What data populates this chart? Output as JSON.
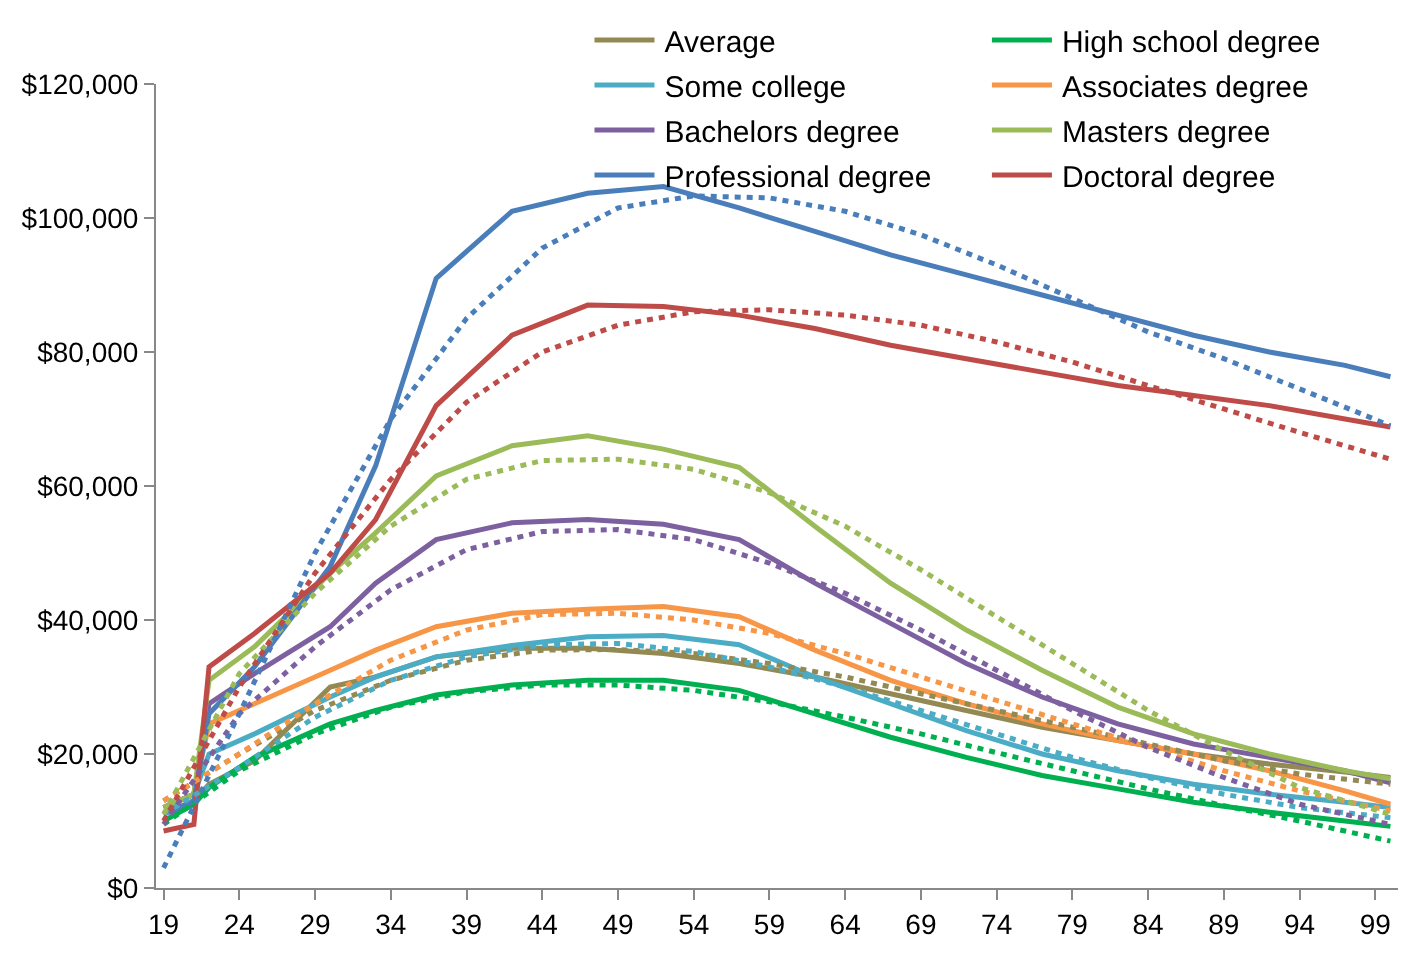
{
  "chart_data": {
    "type": "line",
    "line_style": "solid",
    "marker": "none",
    "legend": "top right",
    "x": [
      19,
      21,
      22,
      25,
      30,
      33,
      37,
      42,
      47,
      52,
      57,
      62,
      67,
      72,
      77,
      82,
      87,
      92,
      97,
      100
    ],
    "xlim": [
      18.5,
      100.5
    ],
    "xticks": [
      19,
      24,
      29,
      34,
      39,
      44,
      49,
      54,
      59,
      64,
      69,
      74,
      79,
      84,
      89,
      94,
      99
    ],
    "ylim": [
      0,
      120000
    ],
    "yticks": [
      {
        "value": 0,
        "label": "$0"
      },
      {
        "value": 20000,
        "label": "$20,000"
      },
      {
        "value": 40000,
        "label": "$40,000"
      },
      {
        "value": 60000,
        "label": "$60,000"
      },
      {
        "value": 80000,
        "label": "$80,000"
      },
      {
        "value": 100000,
        "label": "$100,000"
      },
      {
        "value": 120000,
        "label": "$120,000"
      }
    ],
    "series": [
      {
        "name": "Average",
        "color": "#938953",
        "values": [
          11000,
          13000,
          15500,
          19000,
          30000,
          31500,
          34500,
          35800,
          35800,
          35000,
          33500,
          31500,
          29000,
          26500,
          24000,
          22000,
          20000,
          18500,
          17300,
          16500
        ]
      },
      {
        "name": "High school degree",
        "color": "#00b050",
        "values": [
          10000,
          12500,
          15000,
          19500,
          24500,
          26500,
          28800,
          30300,
          31000,
          31000,
          29500,
          26000,
          22500,
          19500,
          16800,
          14800,
          12800,
          11300,
          10000,
          9200
        ]
      },
      {
        "name": "Some college",
        "color": "#4bacc6",
        "values": [
          12000,
          14000,
          20000,
          23000,
          28500,
          31500,
          34500,
          36200,
          37500,
          37700,
          36300,
          31500,
          27500,
          23500,
          20000,
          17500,
          15500,
          14000,
          12800,
          12000
        ]
      },
      {
        "name": "Associates degree",
        "color": "#f79646",
        "values": [
          12000,
          14000,
          24500,
          27500,
          32500,
          35500,
          39000,
          41000,
          41600,
          42000,
          40500,
          35500,
          31000,
          27500,
          24500,
          22000,
          20000,
          17500,
          14500,
          12500
        ]
      },
      {
        "name": "Bachelors degree",
        "color": "#7d60a0",
        "values": [
          12000,
          14000,
          27500,
          32000,
          39000,
          45500,
          52000,
          54500,
          55000,
          54300,
          52000,
          45500,
          39500,
          33500,
          28500,
          24500,
          21500,
          19500,
          17500,
          15700
        ]
      },
      {
        "name": "Masters degree",
        "color": "#9bbb59",
        "values": [
          12000,
          14000,
          31000,
          36000,
          47000,
          53000,
          61500,
          66000,
          67500,
          65500,
          62800,
          54000,
          45500,
          38500,
          32500,
          27000,
          23000,
          20000,
          17500,
          16300
        ]
      },
      {
        "name": "Professional degree",
        "color": "#4a7ebb",
        "values": [
          11000,
          13000,
          26000,
          33000,
          48000,
          63000,
          91000,
          101000,
          103700,
          104700,
          101500,
          98000,
          94500,
          91500,
          88500,
          85500,
          82500,
          80000,
          78000,
          76300
        ]
      },
      {
        "name": "Doctoral degree",
        "color": "#be4b48",
        "values": [
          8500,
          9500,
          33000,
          38000,
          47000,
          55000,
          72000,
          82500,
          87000,
          86800,
          85500,
          83500,
          81000,
          79000,
          77000,
          75000,
          73500,
          72000,
          70000,
          68800
        ]
      },
      {
        "type": "line",
        "line_style": "dotted",
        "color": "#938953",
        "x": [
          19,
          24,
          29,
          34,
          39,
          44,
          49,
          54,
          59,
          64,
          69,
          74,
          79,
          84,
          89,
          94,
          100
        ],
        "values": [
          13000,
          20000,
          26500,
          31000,
          34000,
          35500,
          35600,
          35000,
          33500,
          31500,
          29000,
          26500,
          24000,
          21500,
          19000,
          17000,
          15500
        ]
      },
      {
        "type": "line",
        "line_style": "dotted",
        "color": "#00b050",
        "x": [
          19,
          24,
          29,
          34,
          39,
          44,
          49,
          54,
          59,
          64,
          69,
          74,
          79,
          84,
          89,
          94,
          100
        ],
        "values": [
          9500,
          17500,
          23000,
          27000,
          29300,
          30300,
          30300,
          29500,
          27800,
          25500,
          23000,
          20200,
          17500,
          14800,
          12300,
          10000,
          7000
        ]
      },
      {
        "type": "line",
        "line_style": "dotted",
        "color": "#4bacc6",
        "x": [
          19,
          24,
          29,
          34,
          39,
          44,
          49,
          54,
          59,
          64,
          69,
          74,
          79,
          84,
          89,
          94,
          100
        ],
        "values": [
          11000,
          18000,
          25500,
          31000,
          34500,
          36300,
          36500,
          35300,
          33000,
          30000,
          26500,
          23000,
          19500,
          16500,
          14000,
          12000,
          10500
        ]
      },
      {
        "type": "line",
        "line_style": "dotted",
        "color": "#f79646",
        "x": [
          19,
          24,
          29,
          34,
          39,
          44,
          49,
          54,
          59,
          64,
          69,
          74,
          79,
          84,
          89,
          94,
          100
        ],
        "values": [
          13000,
          20000,
          27500,
          34000,
          38500,
          40800,
          41000,
          40000,
          38000,
          35000,
          31500,
          28000,
          24500,
          21000,
          17500,
          14500,
          11500
        ]
      },
      {
        "type": "line",
        "line_style": "dotted",
        "color": "#7d60a0",
        "x": [
          19,
          24,
          29,
          34,
          39,
          44,
          49,
          54,
          59,
          64,
          69,
          74,
          79,
          84,
          89,
          94,
          100
        ],
        "values": [
          9500,
          26000,
          36000,
          44500,
          50500,
          53200,
          53500,
          52000,
          48500,
          44000,
          38500,
          32500,
          26500,
          21000,
          16500,
          12500,
          9500
        ]
      },
      {
        "type": "line",
        "line_style": "dotted",
        "color": "#9bbb59",
        "x": [
          19,
          24,
          29,
          34,
          39,
          44,
          49,
          54,
          59,
          64,
          69,
          74,
          79,
          84,
          89,
          94,
          100
        ],
        "values": [
          11000,
          32000,
          44000,
          54000,
          61000,
          63800,
          64000,
          62500,
          59000,
          54000,
          47500,
          40500,
          33500,
          26500,
          20500,
          15000,
          11000
        ]
      },
      {
        "type": "line",
        "line_style": "dotted",
        "color": "#4a7ebb",
        "x": [
          19,
          24,
          29,
          34,
          39,
          44,
          49,
          54,
          59,
          64,
          69,
          74,
          79,
          84,
          89,
          94,
          100
        ],
        "values": [
          3000,
          26000,
          50000,
          70000,
          85000,
          95500,
          101500,
          103300,
          103000,
          101000,
          97500,
          93000,
          88000,
          83000,
          79000,
          74500,
          69000
        ]
      },
      {
        "type": "line",
        "line_style": "dotted",
        "color": "#be4b48",
        "x": [
          19,
          24,
          29,
          34,
          39,
          44,
          49,
          54,
          59,
          64,
          69,
          74,
          79,
          84,
          89,
          94,
          100
        ],
        "values": [
          10000,
          30000,
          47000,
          61000,
          72500,
          80000,
          84000,
          86000,
          86300,
          85500,
          84000,
          81500,
          78500,
          75000,
          71500,
          68000,
          64000
        ]
      }
    ]
  }
}
